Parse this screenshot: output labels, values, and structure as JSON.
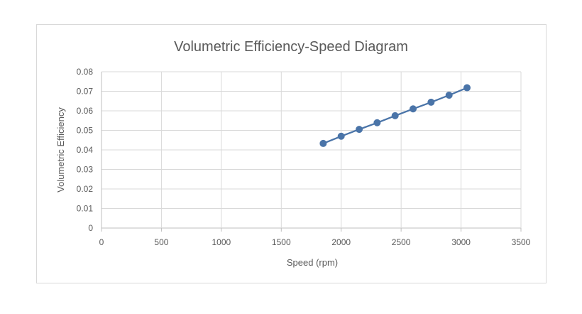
{
  "chart_data": {
    "type": "scatter",
    "title": "Volumetric Efficiency-Speed Diagram",
    "xlabel": "Speed (rpm)",
    "ylabel": "Volumetric Efficiency",
    "xlim": [
      0,
      3500
    ],
    "ylim": [
      0,
      0.08
    ],
    "x_ticks": [
      "0",
      "500",
      "1000",
      "1500",
      "2000",
      "2500",
      "3000",
      "3500"
    ],
    "y_ticks": [
      "0",
      "0.01",
      "0.02",
      "0.03",
      "0.04",
      "0.05",
      "0.06",
      "0.07",
      "0.08"
    ],
    "grid": true,
    "legend": "none",
    "line_color": "#4a74a8",
    "marker_color": "#4a74a8",
    "series": [
      {
        "x": [
          1850,
          2000,
          2150,
          2300,
          2450,
          2600,
          2750,
          2900,
          3050
        ],
        "y": [
          0.0433,
          0.047,
          0.0505,
          0.0539,
          0.0575,
          0.061,
          0.0644,
          0.068,
          0.0718
        ]
      }
    ]
  }
}
